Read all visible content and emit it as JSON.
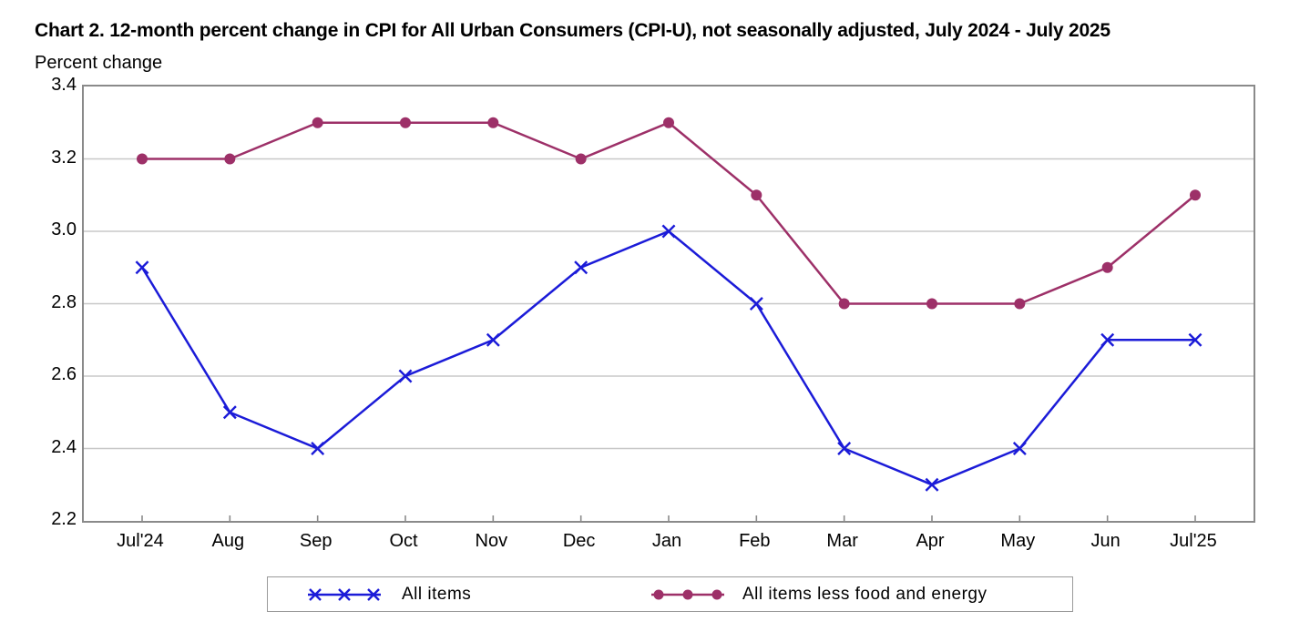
{
  "title": "Chart 2. 12-month percent change in CPI for All Urban Consumers (CPI-U), not seasonally adjusted, July 2024 - July 2025",
  "subtitle": "Percent change",
  "chart_data": {
    "type": "line",
    "categories": [
      "Jul'24",
      "Aug",
      "Sep",
      "Oct",
      "Nov",
      "Dec",
      "Jan",
      "Feb",
      "Mar",
      "Apr",
      "May",
      "Jun",
      "Jul'25"
    ],
    "series": [
      {
        "name": "All items",
        "marker": "x",
        "color": "#1b1bd8",
        "values": [
          2.9,
          2.5,
          2.4,
          2.6,
          2.7,
          2.9,
          3.0,
          2.8,
          2.4,
          2.3,
          2.4,
          2.7,
          2.7
        ]
      },
      {
        "name": "All items less food and energy",
        "marker": "circle",
        "color": "#9d3068",
        "values": [
          3.2,
          3.2,
          3.3,
          3.3,
          3.3,
          3.2,
          3.3,
          3.1,
          2.8,
          2.8,
          2.8,
          2.9,
          3.1
        ]
      }
    ],
    "ylabel": "Percent change",
    "ylim": [
      2.2,
      3.4
    ],
    "yticks": [
      3.4,
      3.2,
      3.0,
      2.8,
      2.6,
      2.4,
      2.2
    ],
    "grid": true,
    "legend_position": "bottom"
  },
  "colors": {
    "frame": "#8a8a8a",
    "gridline": "#c8c8c8",
    "text": "#000000",
    "background": "#ffffff"
  }
}
